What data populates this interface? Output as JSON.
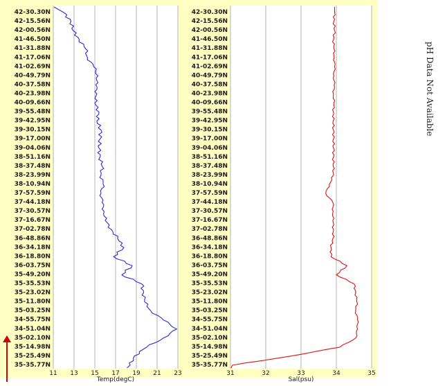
{
  "note": "pH Data Not Available",
  "colors": {
    "panel_background": "#ffffc4",
    "temperature_line": "#2a2ad6",
    "salinity_line": "#e01010",
    "direction_arrow": "#cc0000"
  },
  "chart_data": [
    {
      "type": "line",
      "xlabel": "Temp(degC)",
      "xlim": [
        11,
        23
      ],
      "xticks": [
        "11",
        "13",
        "15",
        "17",
        "19",
        "21",
        "23"
      ],
      "y_tick_labels": [
        "42-30.30N",
        "42-15.56N",
        "42-00.56N",
        "41-46.50N",
        "41-31.88N",
        "41-17.06N",
        "41-02.69N",
        "40-49.79N",
        "40-37.58N",
        "40-23.98N",
        "40-09.66N",
        "39-55.48N",
        "39-42.95N",
        "39-30.15N",
        "39-17.00N",
        "39-04.06N",
        "38-51.16N",
        "38-37.48N",
        "38-23.99N",
        "38-10.94N",
        "37-57.59N",
        "37-44.18N",
        "37-30.57N",
        "37-16.67N",
        "37-02.78N",
        "36-48.86N",
        "36-34.18N",
        "36-18.80N",
        "36-03.75N",
        "35-49.20N",
        "35-35.53N",
        "35-23.02N",
        "35-11.80N",
        "35-03.25N",
        "34-55.75N",
        "34-51.04N",
        "35-02.10N",
        "35-14.98N",
        "35-25.49N",
        "35-35.77N"
      ],
      "grid": true,
      "series": [
        {
          "color": "#2a2ad6",
          "values": [
            12.0,
            12.7,
            12.9,
            13.5,
            14.1,
            14.3,
            14.9,
            15.3,
            15.1,
            15.2,
            15.0,
            15.4,
            15.2,
            15.6,
            15.5,
            15.4,
            15.5,
            15.7,
            15.6,
            15.8,
            15.6,
            15.7,
            15.9,
            16.0,
            16.6,
            17.2,
            17.8,
            16.8,
            18.6,
            17.6,
            19.5,
            19.7,
            19.8,
            20.4,
            21.6,
            22.9,
            21.6,
            20.0,
            18.8,
            18.4
          ]
        }
      ]
    },
    {
      "type": "line",
      "xlabel": "Sal(psu)",
      "xlim": [
        31,
        35
      ],
      "xticks": [
        "31",
        "32",
        "33",
        "34",
        "35"
      ],
      "y_tick_labels": [
        "42-30.30N",
        "42-15.56N",
        "42-00.56N",
        "41-46.50N",
        "41-31.88N",
        "41-17.06N",
        "41-02.69N",
        "40-49.79N",
        "40-37.58N",
        "40-23.98N",
        "40-09.66N",
        "39-55.48N",
        "39-42.95N",
        "39-30.15N",
        "39-17.00N",
        "39-04.06N",
        "38-51.16N",
        "38-37.48N",
        "38-23.99N",
        "38-10.94N",
        "37-57.59N",
        "37-44.18N",
        "37-30.57N",
        "37-16.67N",
        "37-02.78N",
        "36-48.86N",
        "36-34.18N",
        "36-18.80N",
        "36-03.75N",
        "35-49.20N",
        "35-35.53N",
        "35-23.02N",
        "35-11.80N",
        "35-03.25N",
        "34-55.75N",
        "34-51.04N",
        "35-02.10N",
        "35-14.98N",
        "35-25.49N",
        "35-35.77N"
      ],
      "grid": true,
      "series": [
        {
          "color": "#e01010",
          "values": [
            33.95,
            33.93,
            33.95,
            33.92,
            33.93,
            33.94,
            33.95,
            33.93,
            33.94,
            33.92,
            33.93,
            33.92,
            33.91,
            33.92,
            33.92,
            33.92,
            33.92,
            33.91,
            33.92,
            33.8,
            33.7,
            33.9,
            33.91,
            33.9,
            33.92,
            33.9,
            33.85,
            33.85,
            34.3,
            34.0,
            34.5,
            34.55,
            34.58,
            34.55,
            34.6,
            34.6,
            34.55,
            34.1,
            32.7,
            31.05
          ]
        }
      ]
    }
  ]
}
